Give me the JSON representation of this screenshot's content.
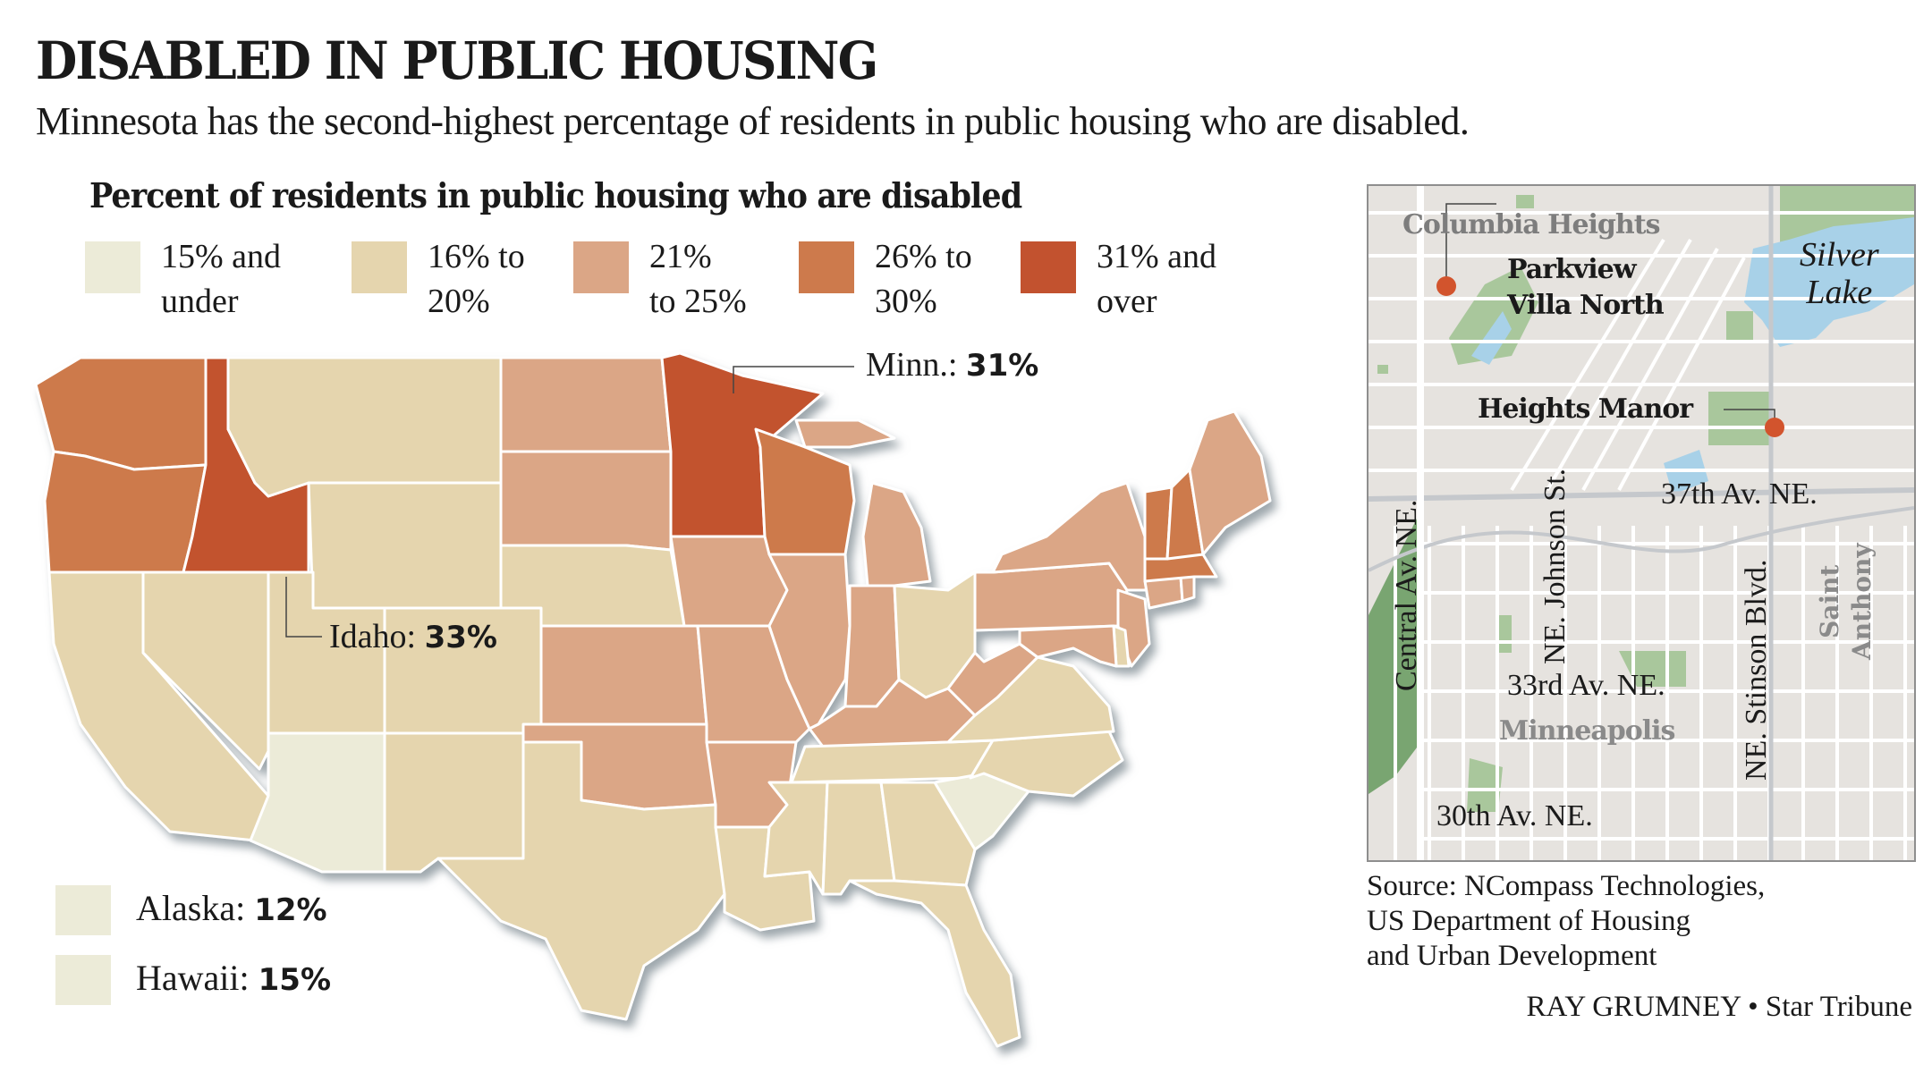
{
  "title": "DISABLED IN PUBLIC HOUSING",
  "subtitle": "Minnesota has the second-highest percentage of residents in public housing who are disabled.",
  "legend": {
    "title": "Percent of residents in public housing who are disabled",
    "bins": [
      {
        "id": "b1",
        "label_line1": "15% and",
        "label_line2": "under",
        "color": "#ecebd8"
      },
      {
        "id": "b2",
        "label_line1": "16% to",
        "label_line2": "20%",
        "color": "#e5d5ae"
      },
      {
        "id": "b3",
        "label_line1": "21%",
        "label_line2": "to 25%",
        "color": "#dba686"
      },
      {
        "id": "b4",
        "label_line1": "26% to",
        "label_line2": "30%",
        "color": "#cd7a4c"
      },
      {
        "id": "b5",
        "label_line1": "31% and",
        "label_line2": "over",
        "color": "#c2522f"
      }
    ]
  },
  "chart_data": {
    "type": "choropleth",
    "title": "Percent of residents in public housing who are disabled",
    "bins": [
      "15% and under",
      "16% to 20%",
      "21% to 25%",
      "26% to 30%",
      "31% and over"
    ],
    "states": {
      "WA": "26% to 30%",
      "OR": "26% to 30%",
      "ID": "31% and over",
      "MT": "16% to 20%",
      "WY": "16% to 20%",
      "CA": "16% to 20%",
      "NV": "16% to 20%",
      "UT": "16% to 20%",
      "CO": "16% to 20%",
      "AZ": "15% and under",
      "NM": "16% to 20%",
      "ND": "21% to 25%",
      "SD": "21% to 25%",
      "NE": "16% to 20%",
      "KS": "21% to 25%",
      "OK": "21% to 25%",
      "TX": "16% to 20%",
      "MN": "31% and over",
      "IA": "21% to 25%",
      "MO": "21% to 25%",
      "AR": "21% to 25%",
      "LA": "16% to 20%",
      "WI": "26% to 30%",
      "IL": "21% to 25%",
      "MI": "21% to 25%",
      "IN": "21% to 25%",
      "OH": "16% to 20%",
      "KY": "21% to 25%",
      "TN": "16% to 20%",
      "MS": "16% to 20%",
      "AL": "16% to 20%",
      "GA": "16% to 20%",
      "FL": "16% to 20%",
      "SC": "15% and under",
      "NC": "16% to 20%",
      "VA": "16% to 20%",
      "WV": "21% to 25%",
      "PA": "21% to 25%",
      "NY": "21% to 25%",
      "NJ": "21% to 25%",
      "DE": "16% to 20%",
      "MD": "21% to 25%",
      "CT": "21% to 25%",
      "RI": "21% to 25%",
      "MA": "26% to 30%",
      "VT": "26% to 30%",
      "NH": "26% to 30%",
      "ME": "21% to 25%",
      "AK": "15% and under",
      "HI": "15% and under"
    },
    "highlighted": [
      {
        "state": "Minn.",
        "value": "31%"
      },
      {
        "state": "Idaho",
        "value": "33%"
      },
      {
        "state": "Alaska",
        "value": "12%"
      },
      {
        "state": "Hawaii",
        "value": "15%"
      }
    ]
  },
  "callouts": {
    "minn": {
      "name": "Minn.:",
      "value": "31%"
    },
    "idaho": {
      "name": "Idaho:",
      "value": "33%"
    },
    "alaska": {
      "name": "Alaska:",
      "value": "12%"
    },
    "hawaii": {
      "name": "Hawaii:",
      "value": "15%"
    }
  },
  "inset": {
    "areas": {
      "columbia_heights": "Columbia Heights",
      "minneapolis": "Minneapolis",
      "saint_anthony_1": "Saint",
      "saint_anthony_2": "Anthony"
    },
    "sites": {
      "parkview_1": "Parkview",
      "parkview_2": "Villa North",
      "heights_manor": "Heights Manor"
    },
    "water": {
      "silver_1": "Silver",
      "silver_2": "Lake"
    },
    "streets": {
      "central": "Central Av. NE.",
      "johnson": "NE. Johnson St.",
      "stinson": "NE. Stinson Blvd.",
      "ave37": "37th Av. NE.",
      "ave33": "33rd Av. NE.",
      "ave30": "30th Av. NE."
    },
    "colors": {
      "land": "#e6e3df",
      "street": "#ffffff",
      "park": "#a9c79c",
      "park_dark": "#79a571",
      "water": "#a8d1e8",
      "marker": "#d2542d",
      "highway": "#c5c8cc"
    }
  },
  "source": {
    "line1": "Source: NCompass Technologies,",
    "line2": "US Department of Housing",
    "line3": "and Urban Development"
  },
  "credit": "RAY GRUMNEY • Star Tribune"
}
